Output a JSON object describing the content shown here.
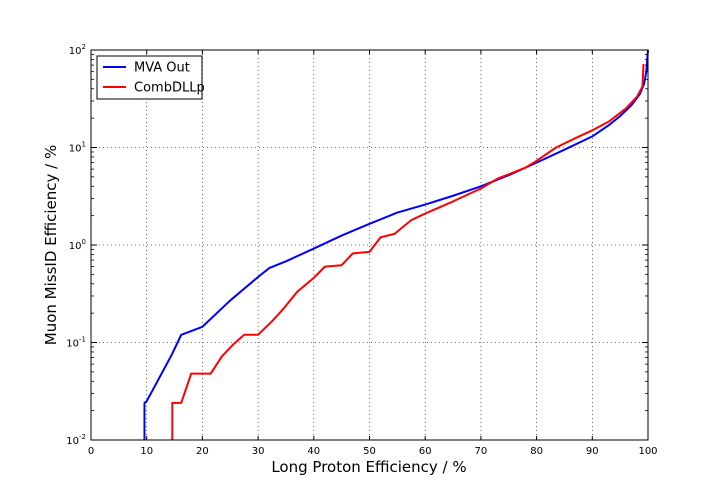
{
  "chart_data": {
    "type": "line",
    "xlabel": "Long Proton Efficiency / %",
    "ylabel": "Muon MissID Efficiency / %",
    "xlim": [
      0,
      100
    ],
    "ylim": [
      0.01,
      100
    ],
    "yscale": "log",
    "grid": true,
    "legend_position": "top-left",
    "x_ticks": [
      "0",
      "10",
      "20",
      "30",
      "40",
      "50",
      "60",
      "70",
      "80",
      "90",
      "100"
    ],
    "y_ticks": [
      {
        "value": 0.01,
        "base": "10",
        "exp": "-2"
      },
      {
        "value": 0.1,
        "base": "10",
        "exp": "-1"
      },
      {
        "value": 1,
        "base": "10",
        "exp": "0"
      },
      {
        "value": 10,
        "base": "10",
        "exp": "1"
      },
      {
        "value": 100,
        "base": "10",
        "exp": "2"
      }
    ],
    "series": [
      {
        "name": "MVA Out",
        "color": "#0000ff",
        "points": [
          [
            9.6,
            0.01
          ],
          [
            9.6,
            0.024
          ],
          [
            10.0,
            0.025
          ],
          [
            12.5,
            0.046
          ],
          [
            14.5,
            0.075
          ],
          [
            16.2,
            0.12
          ],
          [
            20.0,
            0.145
          ],
          [
            25.0,
            0.27
          ],
          [
            30.0,
            0.47
          ],
          [
            32.0,
            0.58
          ],
          [
            35.0,
            0.68
          ],
          [
            40.0,
            0.92
          ],
          [
            45.0,
            1.25
          ],
          [
            50.0,
            1.65
          ],
          [
            55.0,
            2.15
          ],
          [
            60.0,
            2.6
          ],
          [
            65.0,
            3.2
          ],
          [
            70.0,
            4.0
          ],
          [
            75.0,
            5.2
          ],
          [
            80.0,
            7.0
          ],
          [
            85.0,
            9.5
          ],
          [
            90.0,
            13.0
          ],
          [
            93.0,
            17.0
          ],
          [
            95.0,
            21.0
          ],
          [
            97.0,
            27.0
          ],
          [
            98.5,
            35.0
          ],
          [
            99.3,
            45.0
          ],
          [
            99.7,
            60.0
          ],
          [
            99.9,
            85.0
          ],
          [
            100.0,
            100.0
          ]
        ]
      },
      {
        "name": "CombDLLp",
        "color": "#ff0000",
        "points": [
          [
            14.6,
            0.01
          ],
          [
            14.6,
            0.024
          ],
          [
            16.2,
            0.024
          ],
          [
            18.0,
            0.048
          ],
          [
            21.5,
            0.048
          ],
          [
            23.5,
            0.072
          ],
          [
            25.5,
            0.095
          ],
          [
            27.5,
            0.12
          ],
          [
            30.0,
            0.12
          ],
          [
            32.5,
            0.165
          ],
          [
            34.5,
            0.22
          ],
          [
            37.0,
            0.33
          ],
          [
            40.0,
            0.46
          ],
          [
            42.0,
            0.6
          ],
          [
            45.0,
            0.62
          ],
          [
            47.0,
            0.82
          ],
          [
            50.0,
            0.85
          ],
          [
            52.0,
            1.2
          ],
          [
            54.5,
            1.3
          ],
          [
            57.5,
            1.8
          ],
          [
            60.0,
            2.1
          ],
          [
            65.0,
            2.8
          ],
          [
            70.0,
            3.8
          ],
          [
            73.0,
            4.8
          ],
          [
            78.0,
            6.2
          ],
          [
            80.0,
            7.3
          ],
          [
            83.5,
            10.0
          ],
          [
            87.0,
            12.5
          ],
          [
            90.0,
            15.0
          ],
          [
            93.0,
            18.5
          ],
          [
            96.0,
            25.0
          ],
          [
            98.0,
            33.0
          ],
          [
            99.0,
            42.0
          ],
          [
            99.2,
            72.0
          ]
        ]
      }
    ]
  }
}
